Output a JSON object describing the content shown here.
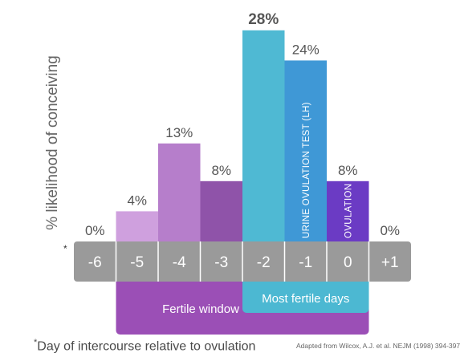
{
  "chart_data": {
    "type": "bar",
    "categories": [
      "-6",
      "-5",
      "-4",
      "-3",
      "-2",
      "-1",
      "0",
      "+1"
    ],
    "values": [
      0,
      4,
      13,
      8,
      28,
      24,
      8,
      0
    ],
    "value_labels": [
      "0%",
      "4%",
      "13%",
      "8%",
      "28%",
      "24%",
      "8%",
      "0%"
    ],
    "bar_colors": [
      "#c8a6dc",
      "#cfa0de",
      "#b67ecb",
      "#8f53a9",
      "#4fb9d3",
      "#3f98d6",
      "#6b3bc4",
      "#c8a6dc"
    ],
    "bar_labels": {
      "5": "URINE OVULATION TEST (LH)",
      "6": "OVULATION"
    },
    "ylabel": "% likelihood of conceiving",
    "xlabel": "Day of intercourse relative to ovulation",
    "ylim": [
      0,
      30
    ],
    "grid": false,
    "legend": "none",
    "ranges": {
      "fertile_window": {
        "label": "Fertile window",
        "from": "-5",
        "to": "0",
        "color": "#9b4fb6"
      },
      "most_fertile": {
        "label": "Most fertile days",
        "from": "-2",
        "to": "0",
        "color": "#4cb8d2"
      }
    },
    "axis_band_color": "#9a9a9a",
    "footnote_marker": "*",
    "source": "Adapted from Wilcox, A.J. et al. NEJM (1998) 394-397"
  }
}
